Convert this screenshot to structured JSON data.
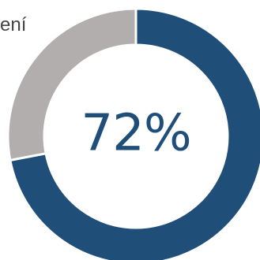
{
  "header": {
    "partial_label": "ení"
  },
  "chart_data": {
    "type": "pie",
    "variant": "donut",
    "title": "",
    "center_label": "72%",
    "slices": [
      {
        "value": 72,
        "color": "#1f4e79"
      },
      {
        "value": 28,
        "color": "#b2aeae"
      }
    ],
    "colors": {
      "primary": "#1f4e79",
      "secondary": "#b2aeae",
      "text": "#1f4e79"
    }
  }
}
